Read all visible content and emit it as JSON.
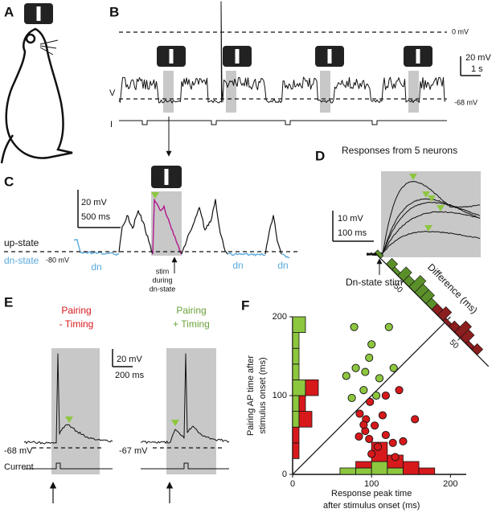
{
  "panel_a": {
    "label": "A"
  },
  "panel_b": {
    "label": "B",
    "zero_level": "0 mV",
    "rest_level": "-68 mV",
    "voltage": "V",
    "current": "I",
    "scale_voltage": "20 mV",
    "scale_time": "1 s"
  },
  "panel_c": {
    "label": "C",
    "scale_voltage": "20 mV",
    "scale_time": "500 ms",
    "up_state": "up-state",
    "dn_state": "dn-state",
    "level": "-80 mV",
    "dn_marks": [
      "dn",
      "dn",
      "dn"
    ],
    "stim_note": [
      "stim",
      "during",
      "dn-state"
    ]
  },
  "panel_d": {
    "label": "D",
    "title": "Responses from 5 neurons",
    "scale_voltage": "10 mV",
    "scale_time": "100 ms",
    "stim": "Dn-state stim"
  },
  "panel_e": {
    "label": "E",
    "minus": {
      "title": [
        "Pairing",
        "- Timing"
      ],
      "level": "-68 mV"
    },
    "plus": {
      "title": [
        "Pairing",
        "+ Timing"
      ],
      "level": "-67 mV"
    },
    "scale_voltage": "20 mV",
    "scale_time": "200 ms",
    "current": "Current"
  },
  "chart_data": {
    "type": "scatter",
    "label": "F",
    "ylabel": [
      "Pairing AP time after",
      "stimulus onset (ms)"
    ],
    "xlabel": [
      "Response peak time",
      "after stimulus onset (ms)"
    ],
    "xlim": [
      0,
      220
    ],
    "ylim": [
      0,
      200
    ],
    "xticks": [
      0,
      100,
      200
    ],
    "yticks": [
      0,
      100,
      200
    ],
    "series": [
      {
        "color": "#8dc63f",
        "x": [
          78,
          122,
          100,
          80,
          92,
          110,
          128,
          68,
          90,
          75,
          106,
          97
        ],
        "values": [
          187,
          187,
          165,
          135,
          130,
          122,
          135,
          125,
          107,
          97,
          100,
          148
        ]
      },
      {
        "color": "#d7191c",
        "x": [
          135,
          118,
          98,
          85,
          93,
          104,
          114,
          92,
          84,
          97,
          118,
          127,
          108,
          140,
          155,
          130,
          100,
          90
        ],
        "values": [
          107,
          100,
          92,
          77,
          70,
          62,
          75,
          55,
          48,
          45,
          50,
          40,
          35,
          42,
          70,
          22,
          26,
          63
        ]
      }
    ],
    "y_histogram": {
      "bins": [
        0,
        20,
        40,
        60,
        80,
        100,
        120,
        140,
        160,
        180,
        200
      ],
      "series": [
        {
          "color": "#8dc63f",
          "values": [
            0,
            0,
            0,
            1,
            1,
            2,
            1,
            1,
            1,
            2
          ]
        },
        {
          "color": "#d7191c",
          "values": [
            0,
            1,
            1,
            2,
            1,
            2,
            0,
            0,
            0,
            0
          ]
        }
      ]
    },
    "x_histogram": {
      "bins": [
        0,
        20,
        40,
        60,
        80,
        100,
        120,
        140,
        160,
        180,
        200
      ],
      "series": [
        {
          "color": "#8dc63f",
          "values": [
            0,
            0,
            0,
            1,
            1,
            2,
            1,
            0,
            0,
            0
          ]
        },
        {
          "color": "#d7191c",
          "values": [
            0,
            0,
            0,
            0,
            1,
            3,
            2,
            2,
            1,
            0
          ]
        }
      ]
    },
    "difference_histogram": {
      "label": "Difference (ms)",
      "lim": [
        -100,
        100
      ],
      "ticks": [
        -50,
        50
      ],
      "bins": [
        -100,
        -90,
        -80,
        -70,
        -60,
        -50,
        -40,
        -30,
        -20,
        -10,
        0,
        10,
        20,
        30,
        40,
        50,
        60,
        70,
        80
      ],
      "series": [
        {
          "color": "#5a8f2a",
          "values": [
            1,
            0,
            2,
            1,
            3,
            2,
            4,
            3,
            3,
            2,
            0,
            0,
            0,
            0,
            0,
            0,
            0,
            0
          ]
        },
        {
          "color": "#8b1e1e",
          "values": [
            0,
            0,
            0,
            0,
            0,
            0,
            0,
            0,
            0,
            0,
            2,
            3,
            1,
            2,
            4,
            3,
            1,
            2
          ]
        }
      ]
    }
  }
}
